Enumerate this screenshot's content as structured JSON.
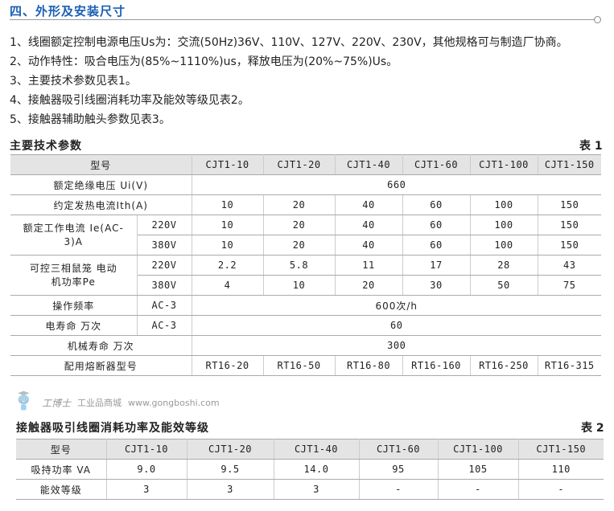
{
  "section": {
    "title": "四、外形及安装尺寸"
  },
  "notes": [
    "1、线圈额定控制电源电压Us为：交流(50Hz)36V、110V、127V、220V、230V，其他规格可与制造厂协商。",
    "2、动作特性：吸合电压为(85%~1110%)us，释放电压为(20%~75%)Us。",
    "3、主要技术参数见表1。",
    "4、接触器吸引线圈消耗功率及能效等级见表2。",
    "5、接触器辅助触头参数见表3。"
  ],
  "table1": {
    "title": "主要技术参数",
    "number": "表 1",
    "header": {
      "label": "型号",
      "models": [
        "CJT1-10",
        "CJT1-20",
        "CJT1-40",
        "CJT1-60",
        "CJT1-100",
        "CJT1-150"
      ]
    },
    "insulation": {
      "label": "额定绝缘电压 Ui(V)",
      "value": "660"
    },
    "thermal": {
      "label": "约定发热电流Ith(A)",
      "values": [
        "10",
        "20",
        "40",
        "60",
        "100",
        "150"
      ]
    },
    "work_current": {
      "label": "额定工作电流 Ie(AC-3)A",
      "rows": [
        {
          "voltage": "220V",
          "values": [
            "10",
            "20",
            "40",
            "60",
            "100",
            "150"
          ]
        },
        {
          "voltage": "380V",
          "values": [
            "10",
            "20",
            "40",
            "60",
            "100",
            "150"
          ]
        }
      ]
    },
    "motor_power": {
      "label": "可控三相鼠笼 电动机功率Pe",
      "rows": [
        {
          "voltage": "220V",
          "values": [
            "2.2",
            "5.8",
            "11",
            "17",
            "28",
            "43"
          ]
        },
        {
          "voltage": "380V",
          "values": [
            "4",
            "10",
            "20",
            "30",
            "50",
            "75"
          ]
        }
      ]
    },
    "frequency": {
      "label": "操作频率",
      "sub": "AC-3",
      "value": "600次/h"
    },
    "electrical_life": {
      "label": "电寿命 万次",
      "sub": "AC-3",
      "value": "60"
    },
    "mechanical_life": {
      "label": "机械寿命  万次",
      "value": "300"
    },
    "fuse": {
      "label": "配用熔断器型号",
      "values": [
        "RT16-20",
        "RT16-50",
        "RT16-80",
        "RT16-160",
        "RT16-250",
        "RT16-315"
      ]
    }
  },
  "table2": {
    "title": "接触器吸引线圈消耗功率及能效等级",
    "number": "表 2",
    "header": {
      "label": "型号",
      "models": [
        "CJT1-10",
        "CJT1-20",
        "CJT1-40",
        "CJT1-60",
        "CJT1-100",
        "CJT1-150"
      ]
    },
    "holding_power": {
      "label": "吸持功率 VA",
      "values": [
        "9.0",
        "9.5",
        "14.0",
        "95",
        "105",
        "110"
      ]
    },
    "efficiency": {
      "label": "能效等级",
      "values": [
        "3",
        "3",
        "3",
        "-",
        "-",
        "-"
      ]
    }
  },
  "watermark": {
    "brand": "工博士",
    "tagline": "工业品商城",
    "url": "www.gongboshi.com"
  },
  "colors": {
    "accent": "#1a5fb4",
    "header_bg": "#e4e4e4",
    "rule": "#aaaaaa"
  }
}
